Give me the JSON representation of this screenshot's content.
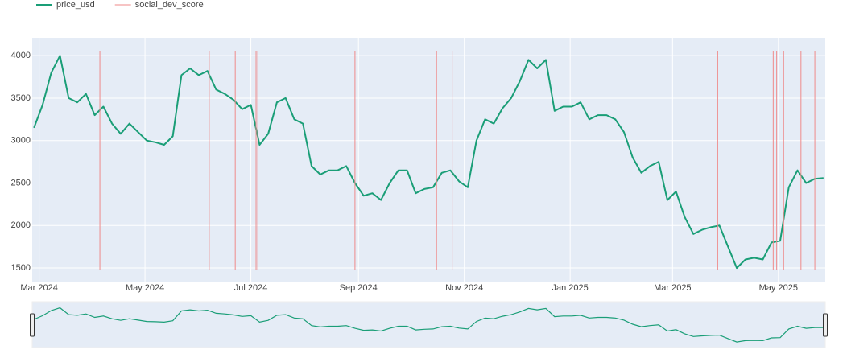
{
  "chart_data": {
    "type": "line",
    "xlim": [
      "2024-02-26",
      "2025-05-28"
    ],
    "xticks": [
      {
        "value": "2024-03-01",
        "label": "Mar 2024"
      },
      {
        "value": "2024-05-01",
        "label": "May 2024"
      },
      {
        "value": "2024-07-01",
        "label": "Jul 2024"
      },
      {
        "value": "2024-09-01",
        "label": "Sep 2024"
      },
      {
        "value": "2024-11-01",
        "label": "Nov 2024"
      },
      {
        "value": "2025-01-01",
        "label": "Jan 2025"
      },
      {
        "value": "2025-03-01",
        "label": "Mar 2025"
      },
      {
        "value": "2025-05-01",
        "label": "May 2025"
      }
    ],
    "ylim": [
      1330,
      4210
    ],
    "yticks": [
      1500,
      2000,
      2500,
      3000,
      3500,
      4000
    ],
    "y2lim": [
      -0.055,
      1.059
    ],
    "grid": true,
    "legend": "top-left",
    "rangeslider": true,
    "series": [
      {
        "name": "price_usd",
        "color": "#1a9e77",
        "x": [
          "2024-02-27",
          "2024-03-03",
          "2024-03-08",
          "2024-03-13",
          "2024-03-18",
          "2024-03-23",
          "2024-03-28",
          "2024-04-02",
          "2024-04-07",
          "2024-04-12",
          "2024-04-17",
          "2024-04-22",
          "2024-04-27",
          "2024-05-02",
          "2024-05-07",
          "2024-05-12",
          "2024-05-17",
          "2024-05-22",
          "2024-05-27",
          "2024-06-01",
          "2024-06-06",
          "2024-06-11",
          "2024-06-16",
          "2024-06-21",
          "2024-06-26",
          "2024-07-01",
          "2024-07-06",
          "2024-07-11",
          "2024-07-16",
          "2024-07-21",
          "2024-07-26",
          "2024-07-31",
          "2024-08-05",
          "2024-08-10",
          "2024-08-15",
          "2024-08-20",
          "2024-08-25",
          "2024-08-30",
          "2024-09-04",
          "2024-09-09",
          "2024-09-14",
          "2024-09-19",
          "2024-09-24",
          "2024-09-29",
          "2024-10-04",
          "2024-10-09",
          "2024-10-14",
          "2024-10-19",
          "2024-10-24",
          "2024-10-29",
          "2024-11-03",
          "2024-11-08",
          "2024-11-13",
          "2024-11-18",
          "2024-11-23",
          "2024-11-28",
          "2024-12-03",
          "2024-12-08",
          "2024-12-13",
          "2024-12-18",
          "2024-12-23",
          "2024-12-28",
          "2025-01-02",
          "2025-01-07",
          "2025-01-12",
          "2025-01-17",
          "2025-01-22",
          "2025-01-27",
          "2025-02-01",
          "2025-02-06",
          "2025-02-11",
          "2025-02-16",
          "2025-02-21",
          "2025-02-26",
          "2025-03-03",
          "2025-03-08",
          "2025-03-13",
          "2025-03-18",
          "2025-03-23",
          "2025-03-28",
          "2025-04-02",
          "2025-04-07",
          "2025-04-12",
          "2025-04-17",
          "2025-04-22",
          "2025-04-27",
          "2025-05-02",
          "2025-05-07",
          "2025-05-12",
          "2025-05-17",
          "2025-05-22",
          "2025-05-27"
        ],
        "values": [
          3150,
          3420,
          3800,
          4000,
          3500,
          3450,
          3550,
          3300,
          3400,
          3200,
          3080,
          3200,
          3100,
          3000,
          2980,
          2950,
          3050,
          3770,
          3850,
          3770,
          3820,
          3600,
          3550,
          3480,
          3370,
          3420,
          2950,
          3080,
          3450,
          3500,
          3250,
          3200,
          2700,
          2600,
          2650,
          2650,
          2700,
          2500,
          2350,
          2380,
          2300,
          2500,
          2650,
          2650,
          2380,
          2430,
          2450,
          2620,
          2650,
          2520,
          2450,
          3000,
          3250,
          3200,
          3380,
          3500,
          3700,
          3950,
          3850,
          3950,
          3350,
          3400,
          3400,
          3450,
          3250,
          3300,
          3300,
          3250,
          3100,
          2800,
          2620,
          2700,
          2750,
          2300,
          2400,
          2100,
          1900,
          1950,
          1980,
          2000,
          1750,
          1500,
          1600,
          1620,
          1600,
          1800,
          1820,
          2450,
          2650,
          2500,
          2550,
          2560
        ]
      },
      {
        "name": "social_dev_score",
        "color": "#ef8a8a",
        "axis": "y2",
        "x": [
          "2024-04-05",
          "2024-06-07",
          "2024-06-22",
          "2024-07-04",
          "2024-07-05",
          "2024-08-30",
          "2024-10-16",
          "2024-10-25",
          "2025-03-27",
          "2025-04-28",
          "2025-04-29",
          "2025-04-30",
          "2025-05-04",
          "2025-05-14",
          "2025-05-22"
        ],
        "values": [
          1,
          1,
          1,
          1,
          1,
          1,
          1,
          1,
          1,
          1,
          1,
          1,
          1,
          1,
          1
        ]
      }
    ]
  }
}
